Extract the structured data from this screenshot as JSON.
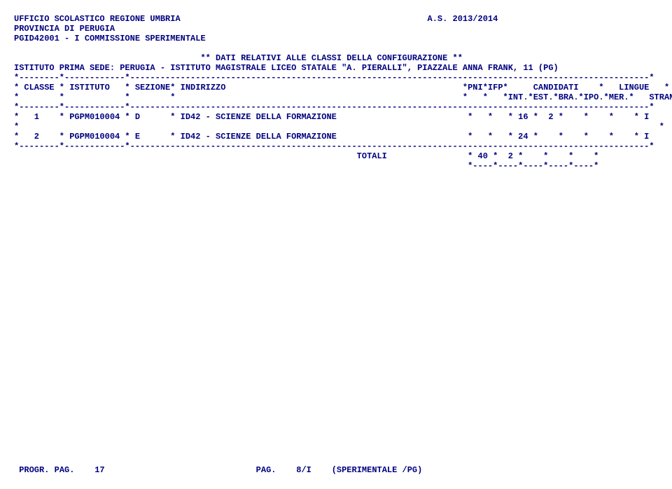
{
  "header": {
    "ufficio": "UFFICIO SCOLASTICO REGIONE UMBRIA",
    "anno": "A.S. 2013/2014",
    "provincia": "PROVINCIA DI PERUGIA",
    "commissione": "PGID42001 - I COMMISSIONE SPERIMENTALE",
    "subtitle": "** DATI RELATIVI ALLE CLASSI DELLA CONFIGURAZIONE **",
    "sede": "ISTITUTO PRIMA SEDE: PERUGIA - ISTITUTO MAGISTRALE LICEO STATALE \"A. PIERALLI\", PIAZZALE ANNA FRANK, 11 (PG)"
  },
  "table": {
    "border": "*--------*------------*-------------------------------------------------------------------------------------------------------*",
    "headerRow1": "* CLASSE * ISTITUTO   * SEZIONE* INDIRIZZO                                               *PNI*IFP*     CANDIDATI    *   LINGUE   *",
    "headerRow2": "*        *            *        *                                                         *   *   *INT.*EST.*BRA.*IPO.*MER.*   STRANIERE  *",
    "dataRow1": "*   1    * PGPM010004 * D      * ID42 - SCIENZE DELLA FORMAZIONE                          *   *   * 16 *  2 *    *    *    * I          *",
    "blankRow": "*                                                                                                                               *",
    "dataRow2": "*   2    * PGPM010004 * E      * ID42 - SCIENZE DELLA FORMAZIONE                          *   *   * 24 *    *    *    *    * I          *",
    "totalsRow": "                                                                    TOTALI                * 40 *  2 *    *    *    *",
    "totalsSep": "                                                                                          *----*----*----*----*----*"
  },
  "footer": {
    "progr": "PROGR. PAG.    17",
    "pag": "PAG.    8/I",
    "label": "(SPERIMENTALE /PG)"
  }
}
